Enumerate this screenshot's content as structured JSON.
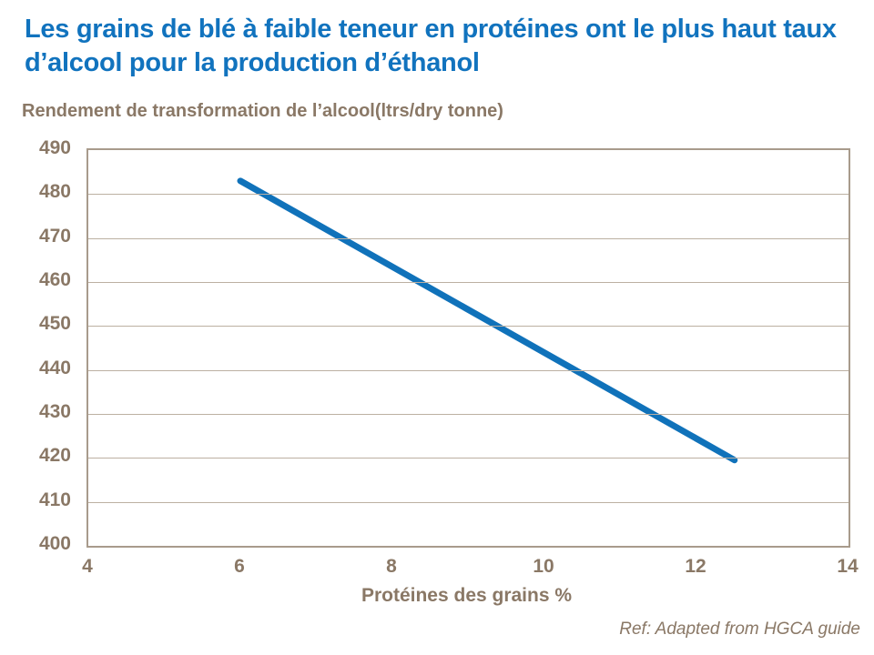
{
  "title": "Les grains de blé à faible teneur en protéines ont le plus haut taux d’alcool pour la production d’éthanol",
  "subtitle": "Rendement de transformation de l’alcool(ltrs/dry tonne)",
  "footer": "Ref: Adapted from HGCA guide",
  "colors": {
    "title_blue": "#1173BE",
    "line_blue": "#1072BA",
    "text_brown": "#8A7866",
    "gridline": "#BCB0A2",
    "plot_border": "#A89B8C",
    "background": "#FFFFFF"
  },
  "chart_data": {
    "type": "line",
    "title": "Les grains de blé à faible teneur en protéines ont le plus haut taux d’alcool pour la production d’éthanol",
    "xlabel": "Protéines des grains %",
    "ylabel": "Rendement de transformation de l’alcool(ltrs/dry tonne)",
    "xlim": [
      4,
      14
    ],
    "ylim": [
      400,
      490
    ],
    "xticks": [
      4,
      6,
      8,
      10,
      12,
      14
    ],
    "yticks": [
      400,
      410,
      420,
      430,
      440,
      450,
      460,
      470,
      480,
      490
    ],
    "grid": "horizontal",
    "legend": "none",
    "series": [
      {
        "name": "Rendement de transformation de l’alcool",
        "color": "#1072BA",
        "stroke_width": 7,
        "points": [
          [
            6,
            483
          ],
          [
            12.5,
            419.5
          ]
        ]
      }
    ]
  }
}
